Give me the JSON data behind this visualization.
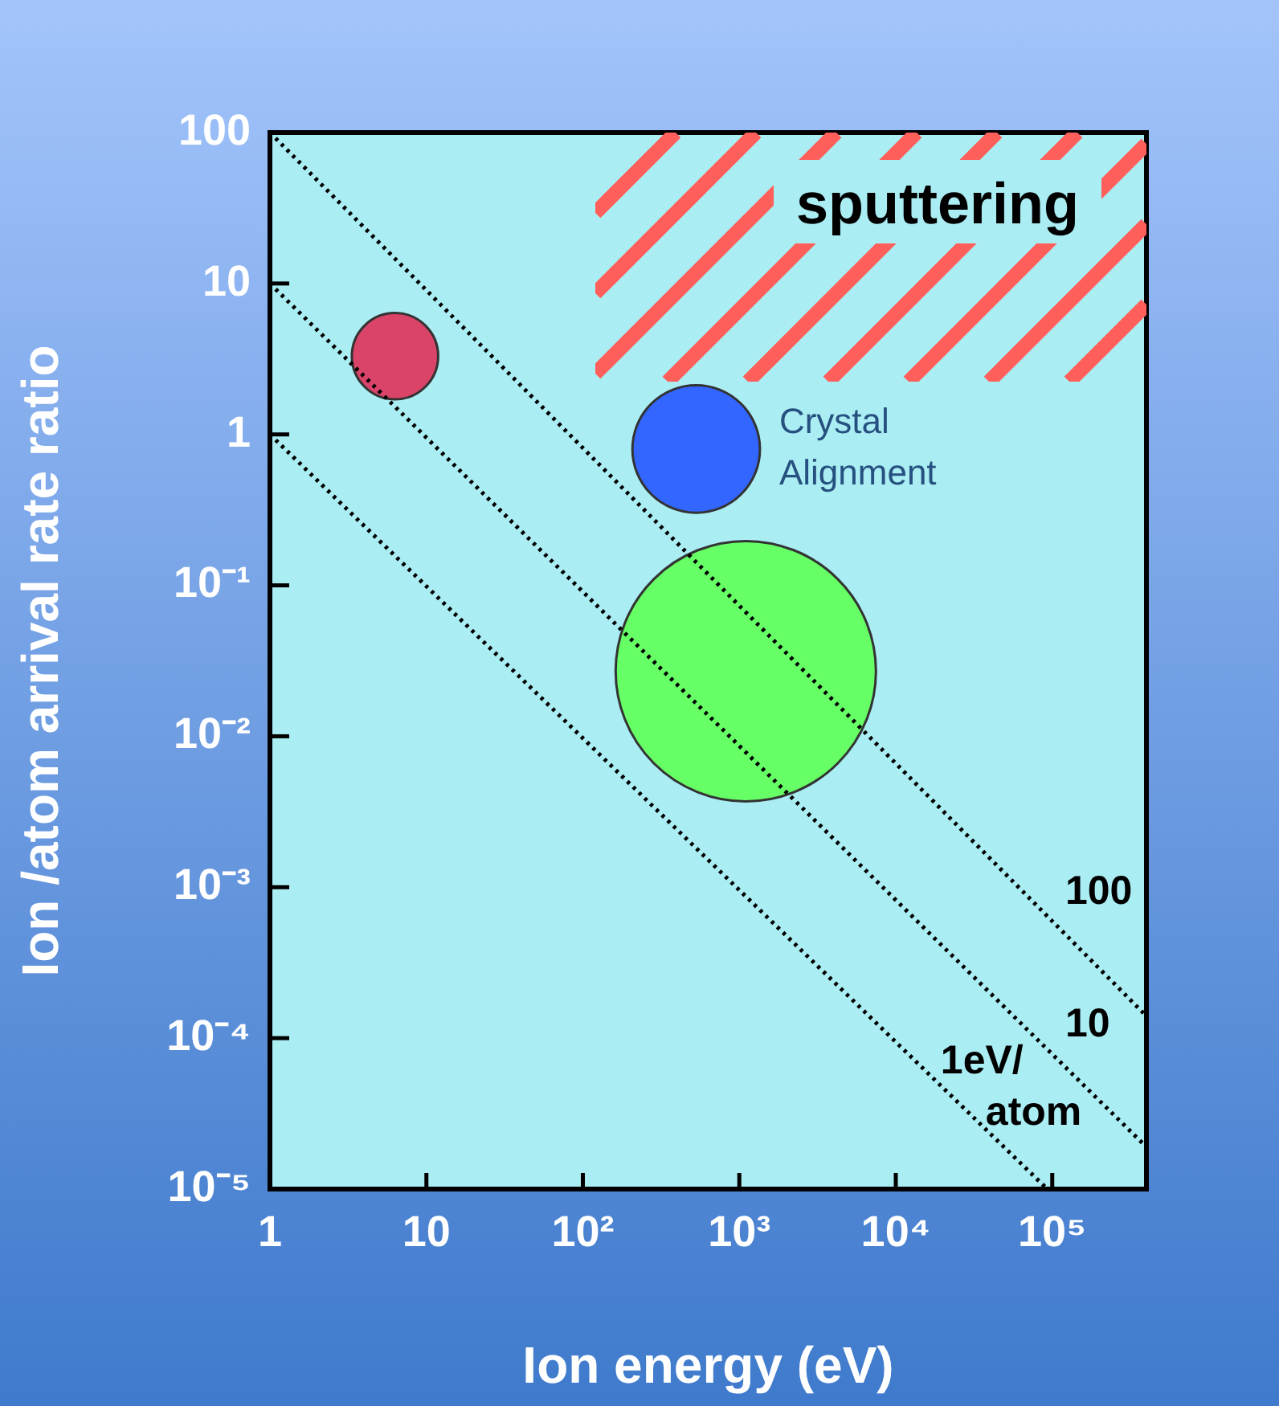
{
  "chart_data": {
    "type": "line",
    "xlabel": "Ion energy (eV)",
    "ylabel": "Ion /atom arrival rate ratio",
    "log": "xy",
    "legend": false,
    "annotations": [
      "sputtering"
    ],
    "line_style": "dotted",
    "xlim": [
      1,
      400000
    ],
    "ylim": [
      1e-05,
      100
    ],
    "xticks": [
      1,
      10,
      {
        "value": 100,
        "label": "10²"
      },
      {
        "value": 1000,
        "label": "10³"
      },
      {
        "value": 10000,
        "label": "10⁴"
      },
      {
        "value": 100000,
        "label": "10⁵"
      }
    ],
    "yticks": [
      100,
      10,
      1,
      {
        "value": 0.1,
        "label": "10⁻¹"
      },
      {
        "value": 0.01,
        "label": "10⁻²"
      },
      {
        "value": 0.001,
        "label": "10⁻³"
      },
      {
        "value": 0.0001,
        "label": "10⁻⁴"
      },
      {
        "value": 1e-05,
        "label": "10⁻⁵"
      }
    ],
    "series": [
      {
        "name": "100",
        "color": "#000000",
        "x": [
          1,
          400000
        ],
        "values": [
          100,
          0.00014
        ]
      },
      {
        "name": "10",
        "color": "#000000",
        "x": [
          1,
          400000
        ],
        "values": [
          10,
          1.9e-05
        ]
      },
      {
        "name": "1eV/atom",
        "color": "#000000",
        "x": [
          1,
          93000
        ],
        "values": [
          1,
          1e-05
        ]
      },
      {
        "type": "bubble",
        "color": "#d94468",
        "x": [
          6.3
        ],
        "values": [
          3.3
        ],
        "sizes": [
          0.11
        ]
      },
      {
        "type": "bubble",
        "name": "Crystal Alignment",
        "color": "#3366ff",
        "x": [
          530
        ],
        "values": [
          0.8
        ],
        "sizes": [
          0.24
        ]
      },
      {
        "type": "bubble",
        "color": "#66ff66",
        "x": [
          1100
        ],
        "values": [
          0.027
        ],
        "sizes": [
          1
        ]
      }
    ]
  }
}
